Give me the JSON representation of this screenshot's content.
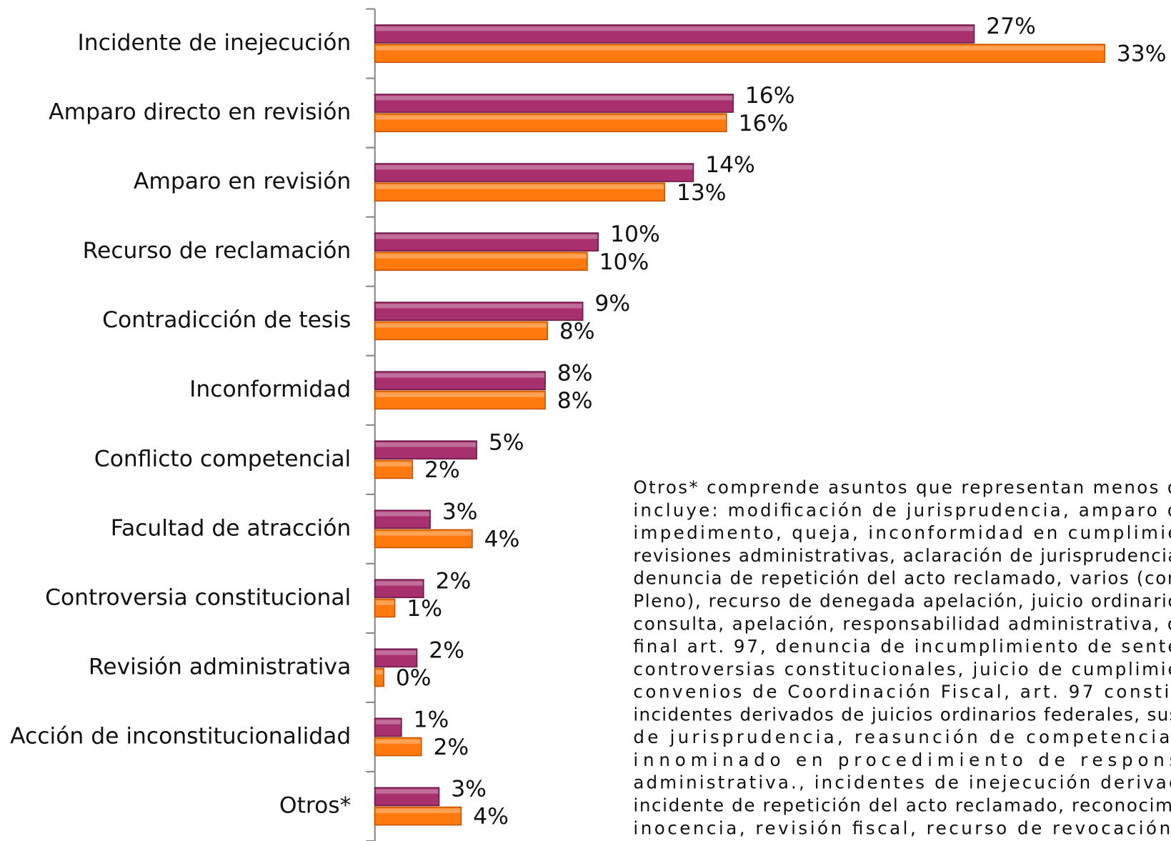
{
  "chart_data": {
    "type": "bar",
    "orientation": "horizontal",
    "categories": [
      "Incidente de inejecución",
      "Amparo directo en revisión",
      "Amparo en revisión",
      "Recurso de reclamación",
      "Contradicción de tesis",
      "Inconformidad",
      "Conflicto competencial",
      "Facultad de atracción",
      "Controversia constitucional",
      "Revisión administrativa",
      "Acción de inconstitucionalidad",
      "Otros*"
    ],
    "series": [
      {
        "color": "#a8306f",
        "values": [
          27.1,
          16.2,
          14.4,
          10.1,
          9.4,
          7.7,
          4.6,
          2.5,
          2.2,
          1.9,
          1.2,
          2.9
        ],
        "value_labels": [
          "27%",
          "16%",
          "14%",
          "10%",
          "9%",
          "8%",
          "5%",
          "3%",
          "2%",
          "2%",
          "1%",
          "3%"
        ]
      },
      {
        "color": "#ff7a0e",
        "values": [
          33,
          15.9,
          13.1,
          9.6,
          7.8,
          7.7,
          1.7,
          4.4,
          0.9,
          0.4,
          2.1,
          3.9
        ],
        "value_labels": [
          "33%",
          "16%",
          "13%",
          "10%",
          "8%",
          "8%",
          "2%",
          "4%",
          "1%",
          "0%",
          "2%",
          "4%"
        ]
      }
    ],
    "xlim": [
      0,
      36
    ],
    "annotation": [
      "Otros* comprende asuntos que representan menos d",
      "incluye: modificación de jurisprudencia, amparo d",
      "impedimento, queja, inconformidad en cumplimie",
      "revisiones administrativas, aclaración de jurisprudencia",
      "denuncia de repetición del acto reclamado, varios (con",
      "Pleno), recurso de denegada apelación, juicio ordinario",
      "consulta, apelación, responsabilidad administrativa, d",
      "final art. 97, denuncia de incumplimiento de sente",
      "controversias constitucionales, juicio de cumplimie",
      "convenios de Coordinación Fiscal, art. 97 constit",
      "incidentes derivados de juicios ordinarios federales, sus",
      "de jurisprudencia, reasunción de competencia,",
      "innominado en procedimiento de respons",
      "administrativa., incidentes de inejecución derivac",
      "incidente de repetición del acto reclamado, reconocimi",
      "inocencia, revisión fiscal, recurso de revocación,"
    ]
  }
}
